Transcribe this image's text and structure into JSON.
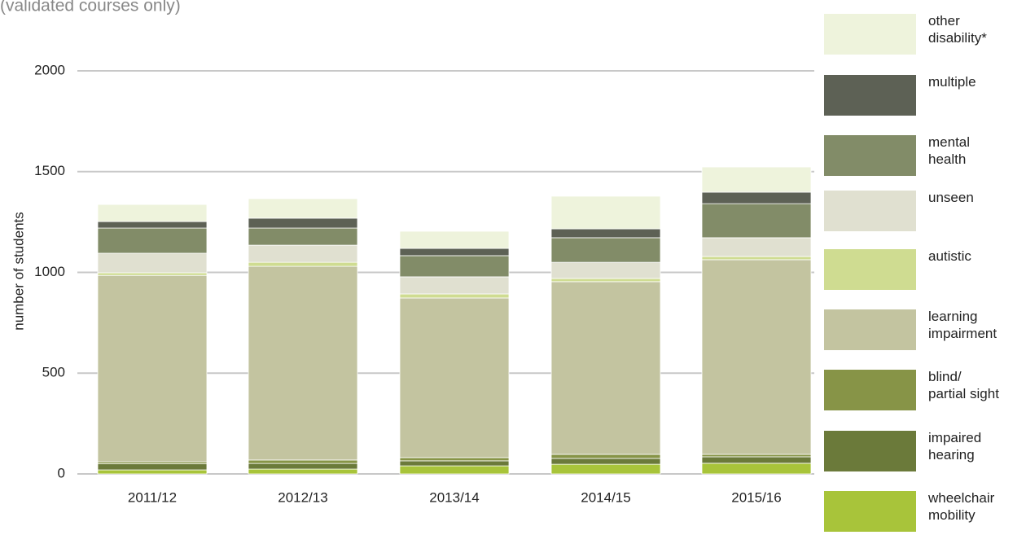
{
  "chart_data": {
    "type": "stacked_bar",
    "subtitle": "(validated courses only)",
    "ylabel": "number of students",
    "categories": [
      "2011/12",
      "2012/13",
      "2013/14",
      "2014/15",
      "2015/16"
    ],
    "ylim": [
      0,
      2000
    ],
    "yticks": [
      0,
      500,
      1000,
      1500,
      2000
    ],
    "grid": true,
    "series": [
      {
        "name": "wheelchair\nmobility",
        "color": "#a8c43a",
        "values": [
          20,
          24,
          40,
          48,
          53
        ]
      },
      {
        "name": "impaired\nhearing",
        "color": "#6b7a3a",
        "values": [
          30,
          28,
          25,
          29,
          32
        ]
      },
      {
        "name": "blind/\npartial sight",
        "color": "#879447",
        "values": [
          10,
          17,
          16,
          20,
          12
        ]
      },
      {
        "name": "learning\nimpairment",
        "color": "#c3c4a0",
        "values": [
          925,
          961,
          792,
          857,
          966
        ]
      },
      {
        "name": "autistic",
        "color": "#cfdc91",
        "values": [
          13,
          20,
          20,
          16,
          16
        ]
      },
      {
        "name": "unseen",
        "color": "#e0e0d0",
        "values": [
          97,
          85,
          85,
          80,
          93
        ]
      },
      {
        "name": "mental\nhealth",
        "color": "#828c68",
        "values": [
          125,
          85,
          105,
          122,
          169
        ]
      },
      {
        "name": "multiple",
        "color": "#5d6155",
        "values": [
          32,
          49,
          36,
          44,
          57
        ]
      },
      {
        "name": "other\ndisability*",
        "color": "#eef3dc",
        "values": [
          85,
          97,
          85,
          162,
          125
        ]
      }
    ]
  }
}
